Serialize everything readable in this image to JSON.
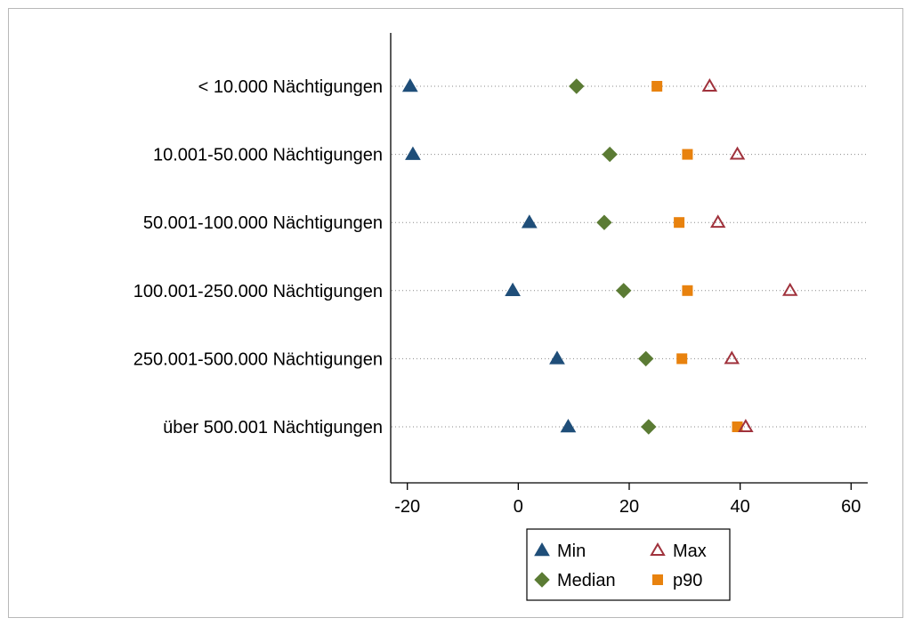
{
  "chart_data": {
    "type": "scatter",
    "orientation": "horizontal-dot-plot",
    "categories": [
      "< 10.000 Nächtigungen",
      "10.001-50.000 Nächtigungen",
      "50.001-100.000 Nächtigungen",
      "100.001-250.000 Nächtigungen",
      "250.001-500.000 Nächtigungen",
      "über 500.001 Nächtigungen"
    ],
    "series": [
      {
        "name": "Min",
        "marker": "triangle-filled",
        "color": "#1f4e79",
        "values": [
          -19.5,
          -19,
          2,
          -1,
          7,
          9
        ]
      },
      {
        "name": "Median",
        "marker": "diamond-filled",
        "color": "#5b7b34",
        "values": [
          10.5,
          16.5,
          15.5,
          19,
          23,
          23.5
        ]
      },
      {
        "name": "p90",
        "marker": "square-filled",
        "color": "#e8820e",
        "values": [
          25,
          30.5,
          29,
          30.5,
          29.5,
          39.5
        ]
      },
      {
        "name": "Max",
        "marker": "triangle-hollow",
        "color": "#a0323c",
        "values": [
          34.5,
          39.5,
          36,
          49,
          38.5,
          41
        ]
      }
    ],
    "xlim": [
      -23,
      63
    ],
    "xticks": [
      "-20",
      "0",
      "20",
      "40",
      "60"
    ],
    "xtick_values": [
      -20,
      0,
      20,
      40,
      60
    ],
    "title": "",
    "xlabel": "",
    "ylabel": "",
    "grid": "dotted horizontal lines per category",
    "legend": {
      "placement": "bottom-center",
      "order": [
        "Min",
        "Max",
        "Median",
        "p90"
      ]
    }
  }
}
